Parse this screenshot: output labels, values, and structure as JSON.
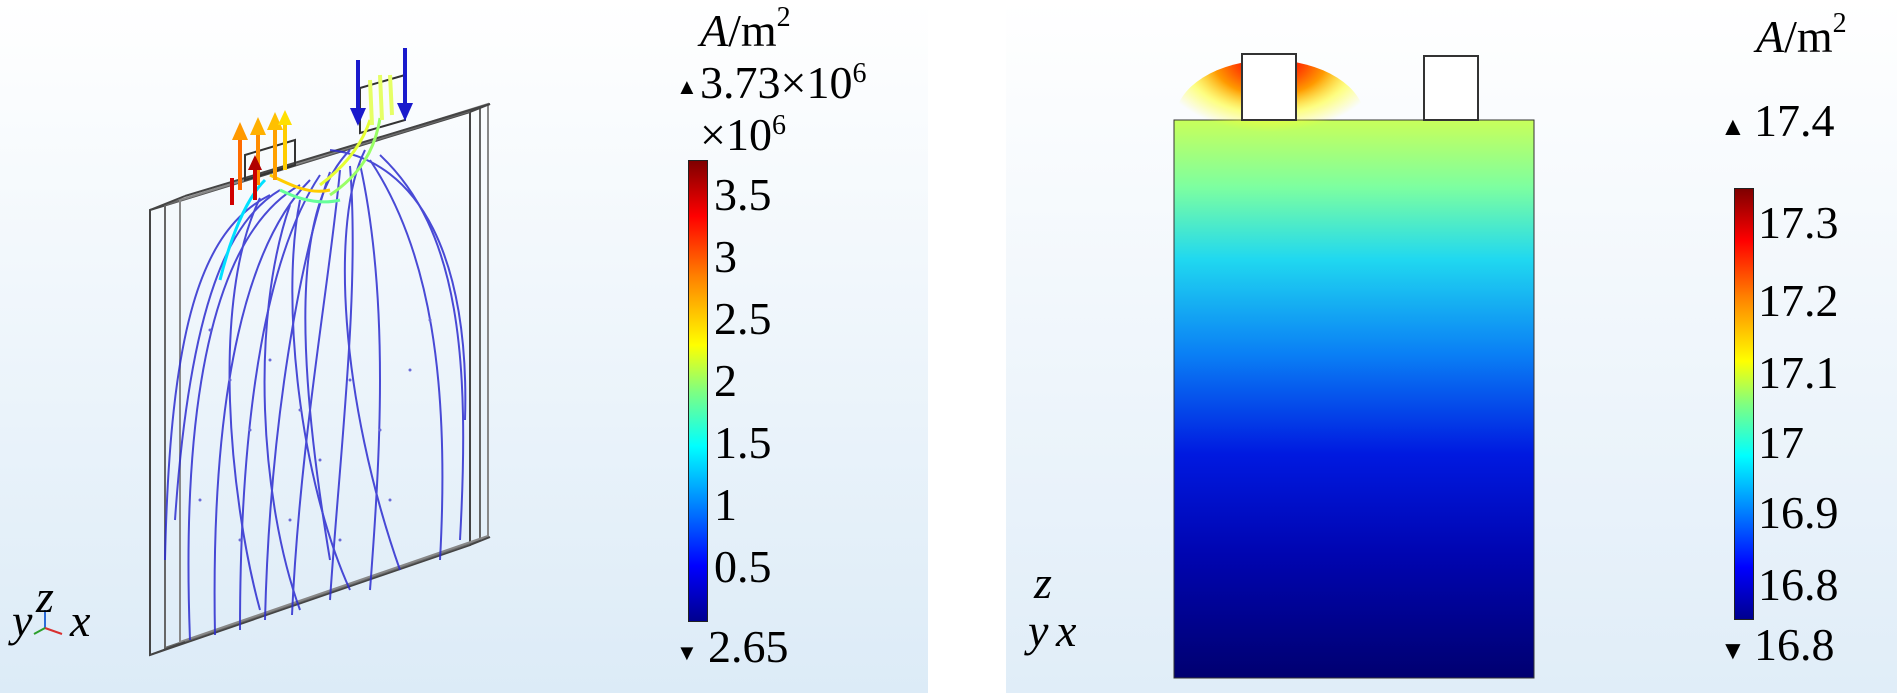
{
  "left_plot": {
    "unit": {
      "symbol": "A",
      "per": "/m",
      "exp": "2"
    },
    "max": {
      "mantissa": "3.73",
      "times": "×10",
      "exp": "6"
    },
    "scale": {
      "times": "×10",
      "exp": "6"
    },
    "min": "2.65",
    "ticks": [
      "3.5",
      "3",
      "2.5",
      "2",
      "1.5",
      "1",
      "0.5"
    ],
    "axes": {
      "y": "y",
      "z": "z",
      "x": "x"
    }
  },
  "right_plot": {
    "unit": {
      "symbol": "A",
      "per": "/m",
      "exp": "2"
    },
    "max": "17.4",
    "min": "16.8",
    "ticks": [
      "17.3",
      "17.2",
      "17.1",
      "17",
      "16.9",
      "16.8"
    ],
    "axes": {
      "z": "z",
      "y": "y",
      "x": "x"
    }
  },
  "colors": {
    "jet": [
      "#7f0000",
      "#ff0000",
      "#ff8000",
      "#ffff00",
      "#80ff80",
      "#00ffff",
      "#0080ff",
      "#0000ff",
      "#00008f"
    ]
  }
}
